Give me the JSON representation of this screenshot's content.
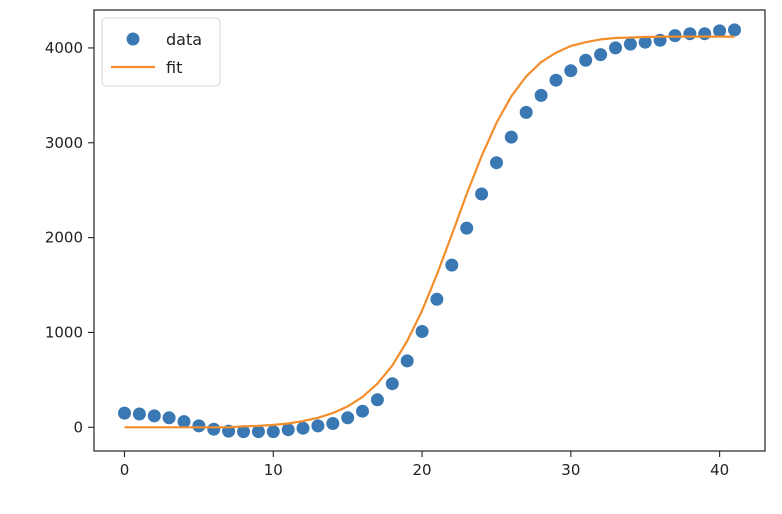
{
  "chart_data": {
    "type": "scatter",
    "title": "",
    "xlabel": "",
    "ylabel": "",
    "xlim": [
      -2.05,
      43.05
    ],
    "ylim": [
      -250,
      4400
    ],
    "xticks": [
      0,
      10,
      20,
      30,
      40
    ],
    "yticks": [
      0,
      1000,
      2000,
      3000,
      4000
    ],
    "grid": false,
    "legend_position": "top-left",
    "series": [
      {
        "name": "data",
        "kind": "scatter",
        "color": "#3a78b3",
        "x": [
          0,
          1,
          2,
          3,
          4,
          5,
          6,
          7,
          8,
          9,
          10,
          11,
          12,
          13,
          14,
          15,
          16,
          17,
          18,
          19,
          20,
          21,
          22,
          23,
          24,
          25,
          26,
          27,
          28,
          29,
          30,
          31,
          32,
          33,
          34,
          35,
          36,
          37,
          38,
          39,
          40,
          41
        ],
        "y": [
          150,
          140,
          120,
          100,
          60,
          15,
          -20,
          -40,
          -45,
          -45,
          -45,
          -25,
          -10,
          15,
          40,
          100,
          170,
          290,
          460,
          700,
          1010,
          1350,
          1710,
          2100,
          2460,
          2790,
          3060,
          3320,
          3500,
          3660,
          3760,
          3870,
          3930,
          4000,
          4040,
          4060,
          4080,
          4130,
          4150,
          4150,
          4180,
          4190
        ]
      },
      {
        "name": "fit",
        "kind": "line",
        "color": "#f28e2b",
        "x": [
          0,
          1,
          2,
          3,
          4,
          5,
          6,
          7,
          8,
          9,
          10,
          11,
          12,
          13,
          14,
          15,
          16,
          17,
          18,
          19,
          20,
          21,
          22,
          23,
          24,
          25,
          26,
          27,
          28,
          29,
          30,
          31,
          32,
          33,
          34,
          35,
          36,
          37,
          38,
          39,
          40,
          41
        ],
        "y": [
          0,
          0,
          0,
          0,
          0,
          0,
          0,
          0,
          10,
          15,
          25,
          40,
          65,
          100,
          150,
          220,
          320,
          460,
          650,
          910,
          1230,
          1610,
          2030,
          2460,
          2860,
          3210,
          3490,
          3700,
          3850,
          3950,
          4020,
          4060,
          4090,
          4105,
          4110,
          4115,
          4118,
          4120,
          4120,
          4120,
          4120,
          4120
        ]
      }
    ]
  }
}
